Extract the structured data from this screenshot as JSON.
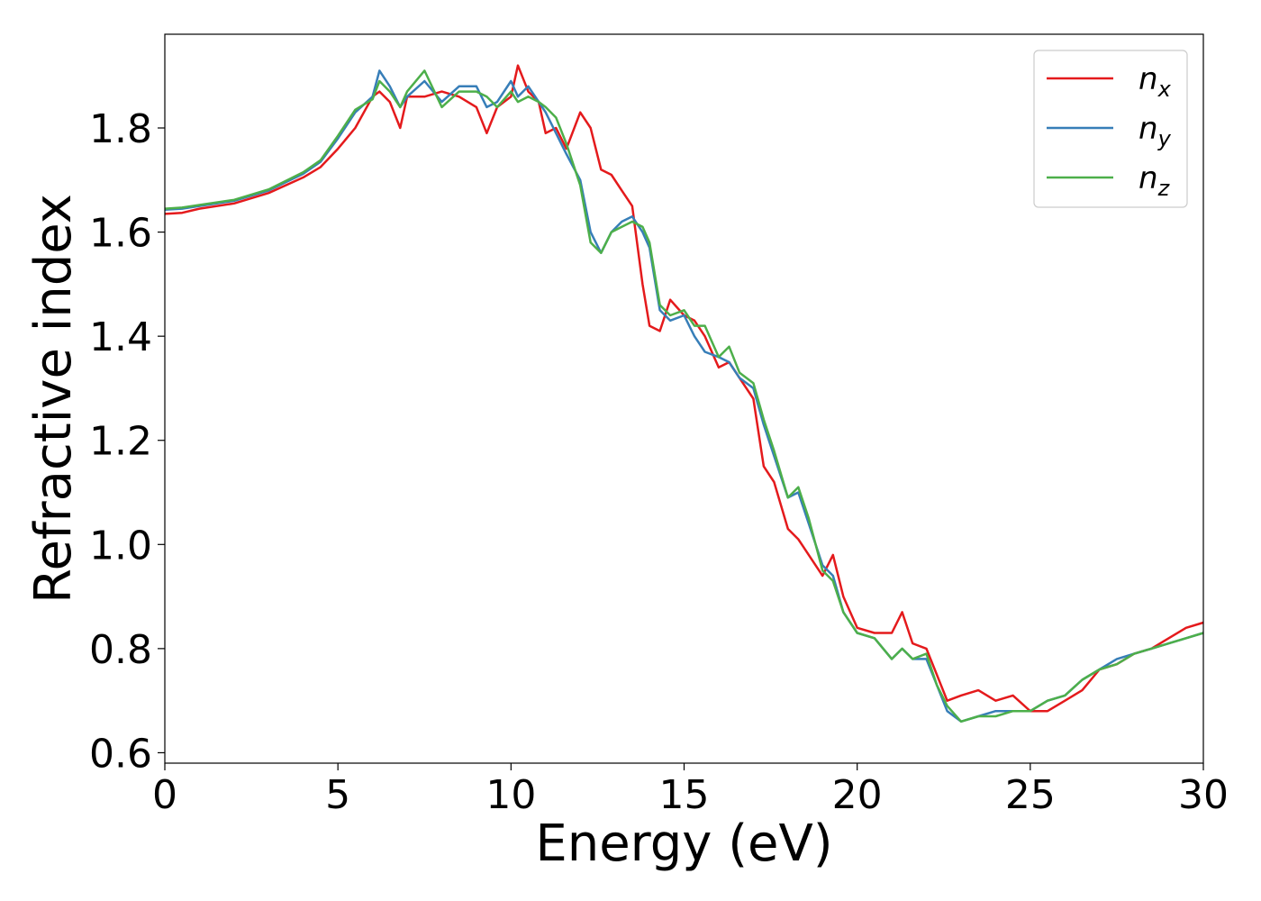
{
  "chart_data": {
    "type": "line",
    "title": "",
    "xlabel": "Energy (eV)",
    "ylabel": "Refractive index",
    "xlim": [
      0,
      30
    ],
    "ylim": [
      0.58,
      1.98
    ],
    "xticks": [
      0,
      5,
      10,
      15,
      20,
      25,
      30
    ],
    "xtick_labels": [
      "0",
      "5",
      "10",
      "15",
      "20",
      "25",
      "30"
    ],
    "yticks": [
      0.6,
      0.8,
      1.0,
      1.2,
      1.4,
      1.6,
      1.8
    ],
    "ytick_labels": [
      "0.6",
      "0.8",
      "1.0",
      "1.2",
      "1.4",
      "1.6",
      "1.8"
    ],
    "grid": false,
    "legend_position": "top-right",
    "series": [
      {
        "name": "n",
        "subscript": "x",
        "color": "#e41a1c",
        "x": [
          0,
          0.5,
          1,
          2,
          3,
          4,
          4.5,
          5,
          5.5,
          6,
          6.2,
          6.5,
          6.8,
          7,
          7.5,
          8,
          8.5,
          9,
          9.3,
          9.6,
          10,
          10.2,
          10.5,
          10.8,
          11,
          11.3,
          11.6,
          12,
          12.3,
          12.6,
          12.9,
          13.2,
          13.5,
          13.8,
          14,
          14.3,
          14.6,
          15,
          15.3,
          15.6,
          16,
          16.3,
          16.6,
          17,
          17.3,
          17.6,
          18,
          18.3,
          18.6,
          19,
          19.3,
          19.6,
          20,
          20.5,
          21,
          21.3,
          21.6,
          22,
          22.3,
          22.6,
          23,
          23.5,
          24,
          24.5,
          25,
          25.5,
          26,
          26.5,
          27,
          27.5,
          28,
          28.5,
          29,
          29.5,
          30
        ],
        "y": [
          1.635,
          1.637,
          1.645,
          1.655,
          1.675,
          1.705,
          1.725,
          1.76,
          1.8,
          1.86,
          1.87,
          1.85,
          1.8,
          1.86,
          1.86,
          1.87,
          1.86,
          1.84,
          1.79,
          1.84,
          1.86,
          1.92,
          1.87,
          1.85,
          1.79,
          1.8,
          1.76,
          1.83,
          1.8,
          1.72,
          1.71,
          1.68,
          1.65,
          1.5,
          1.42,
          1.41,
          1.47,
          1.44,
          1.43,
          1.4,
          1.34,
          1.35,
          1.32,
          1.28,
          1.15,
          1.12,
          1.03,
          1.01,
          0.98,
          0.94,
          0.98,
          0.9,
          0.84,
          0.83,
          0.83,
          0.87,
          0.81,
          0.8,
          0.75,
          0.7,
          0.71,
          0.72,
          0.7,
          0.71,
          0.68,
          0.68,
          0.7,
          0.72,
          0.76,
          0.77,
          0.79,
          0.8,
          0.82,
          0.84,
          0.85
        ]
      },
      {
        "name": "n",
        "subscript": "y",
        "color": "#377eb8",
        "x": [
          0,
          0.5,
          1,
          2,
          3,
          4,
          4.5,
          5,
          5.5,
          6,
          6.2,
          6.5,
          6.8,
          7,
          7.5,
          8,
          8.5,
          9,
          9.3,
          9.6,
          10,
          10.2,
          10.5,
          10.8,
          11,
          11.3,
          11.6,
          12,
          12.3,
          12.6,
          12.9,
          13.2,
          13.5,
          13.8,
          14,
          14.3,
          14.6,
          15,
          15.3,
          15.6,
          16,
          16.3,
          16.6,
          17,
          17.3,
          17.6,
          18,
          18.3,
          18.6,
          19,
          19.3,
          19.6,
          20,
          20.5,
          21,
          21.3,
          21.6,
          22,
          22.3,
          22.6,
          23,
          23.5,
          24,
          24.5,
          25,
          25.5,
          26,
          26.5,
          27,
          27.5,
          28,
          28.5,
          29,
          29.5,
          30
        ],
        "y": [
          1.643,
          1.645,
          1.65,
          1.66,
          1.68,
          1.712,
          1.735,
          1.78,
          1.83,
          1.86,
          1.91,
          1.88,
          1.84,
          1.86,
          1.89,
          1.85,
          1.88,
          1.88,
          1.84,
          1.85,
          1.89,
          1.86,
          1.88,
          1.85,
          1.83,
          1.79,
          1.75,
          1.7,
          1.6,
          1.56,
          1.6,
          1.62,
          1.63,
          1.6,
          1.57,
          1.45,
          1.43,
          1.44,
          1.4,
          1.37,
          1.36,
          1.35,
          1.32,
          1.3,
          1.23,
          1.17,
          1.09,
          1.1,
          1.04,
          0.96,
          0.94,
          0.87,
          0.83,
          0.82,
          0.78,
          0.8,
          0.78,
          0.78,
          0.73,
          0.68,
          0.66,
          0.67,
          0.68,
          0.68,
          0.68,
          0.7,
          0.71,
          0.74,
          0.76,
          0.78,
          0.79,
          0.8,
          0.81,
          0.82,
          0.83
        ]
      },
      {
        "name": "n",
        "subscript": "z",
        "color": "#4daf4a",
        "x": [
          0,
          0.5,
          1,
          2,
          3,
          4,
          4.5,
          5,
          5.5,
          6,
          6.2,
          6.5,
          6.8,
          7,
          7.5,
          8,
          8.5,
          9,
          9.3,
          9.6,
          10,
          10.2,
          10.5,
          10.8,
          11,
          11.3,
          11.6,
          12,
          12.3,
          12.6,
          12.9,
          13.2,
          13.5,
          13.8,
          14,
          14.3,
          14.6,
          15,
          15.3,
          15.6,
          16,
          16.3,
          16.6,
          17,
          17.3,
          17.6,
          18,
          18.3,
          18.6,
          19,
          19.3,
          19.6,
          20,
          20.5,
          21,
          21.3,
          21.6,
          22,
          22.3,
          22.6,
          23,
          23.5,
          24,
          24.5,
          25,
          25.5,
          26,
          26.5,
          27,
          27.5,
          28,
          28.5,
          29,
          29.5,
          30
        ],
        "y": [
          1.645,
          1.647,
          1.652,
          1.662,
          1.682,
          1.715,
          1.738,
          1.785,
          1.835,
          1.855,
          1.89,
          1.87,
          1.84,
          1.87,
          1.91,
          1.84,
          1.87,
          1.87,
          1.86,
          1.84,
          1.87,
          1.85,
          1.86,
          1.85,
          1.84,
          1.82,
          1.77,
          1.69,
          1.58,
          1.56,
          1.6,
          1.61,
          1.62,
          1.61,
          1.58,
          1.46,
          1.44,
          1.45,
          1.42,
          1.42,
          1.36,
          1.38,
          1.33,
          1.31,
          1.24,
          1.18,
          1.09,
          1.11,
          1.05,
          0.95,
          0.93,
          0.87,
          0.83,
          0.82,
          0.78,
          0.8,
          0.78,
          0.79,
          0.73,
          0.69,
          0.66,
          0.67,
          0.67,
          0.68,
          0.68,
          0.7,
          0.71,
          0.74,
          0.76,
          0.77,
          0.79,
          0.8,
          0.81,
          0.82,
          0.83
        ]
      }
    ]
  }
}
